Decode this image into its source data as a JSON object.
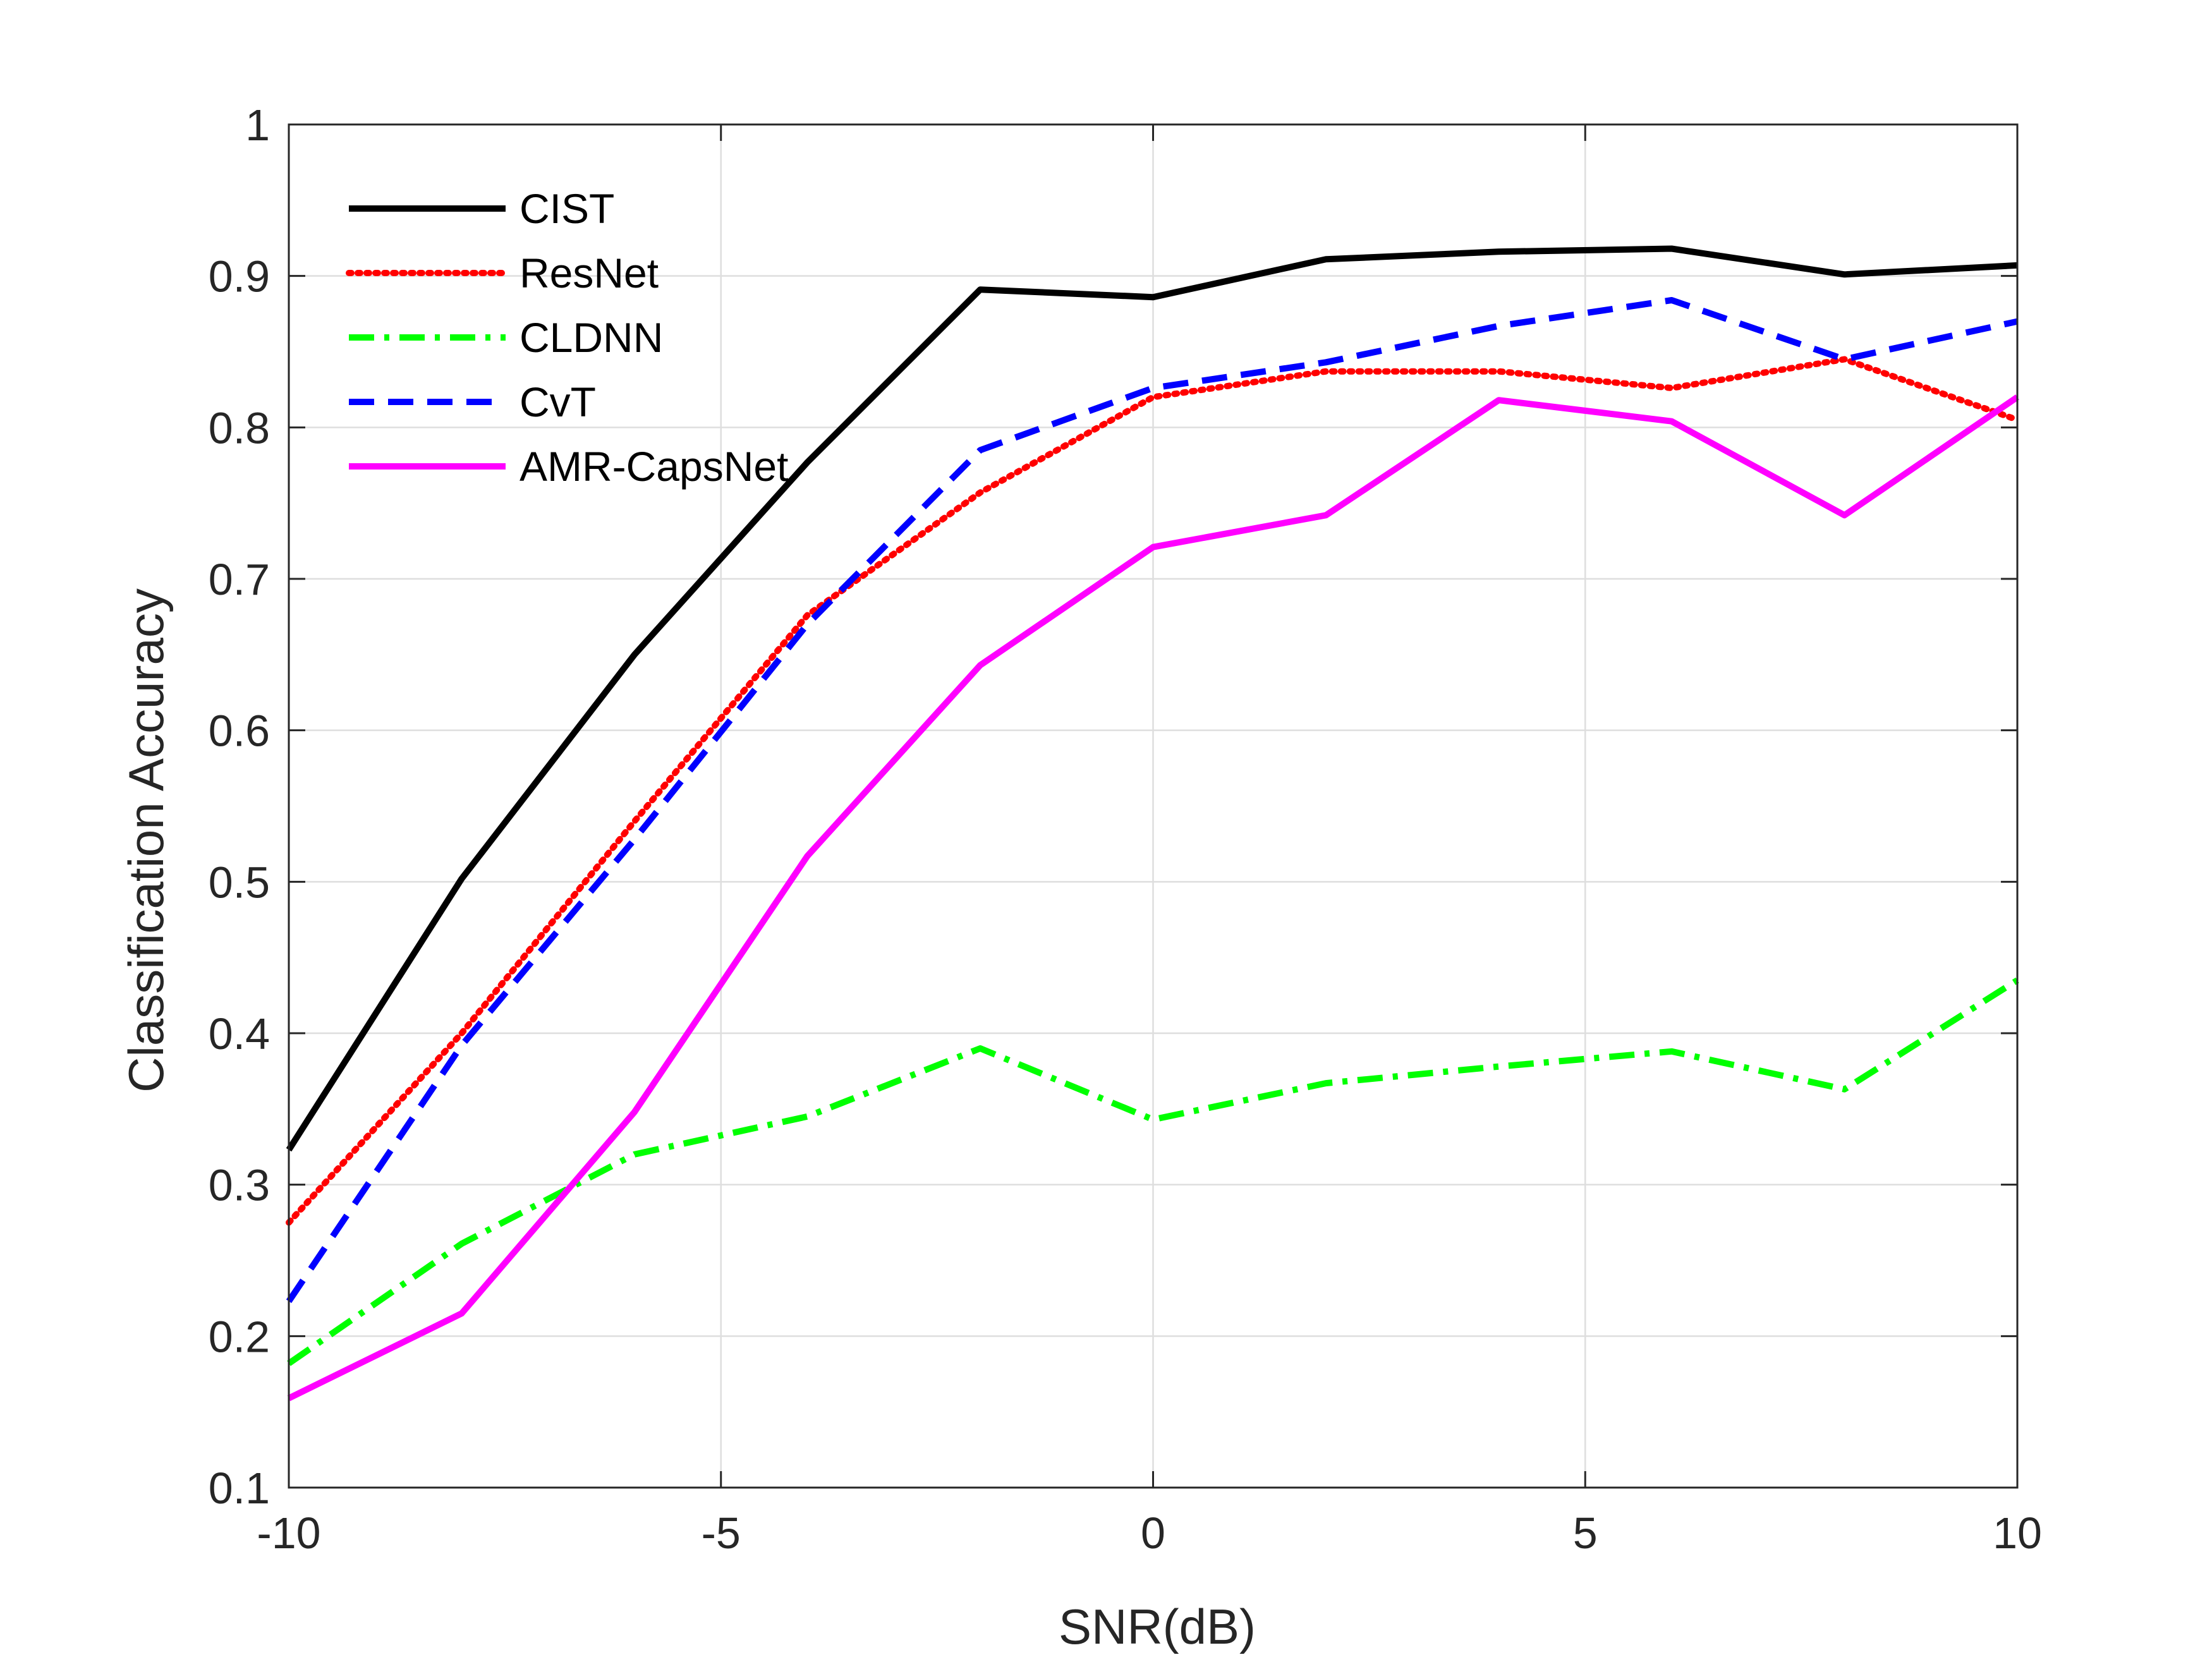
{
  "chart_data": {
    "type": "line",
    "title": "",
    "xlabel": "SNR(dB)",
    "ylabel": "Classification Accuracy",
    "xlim": [
      -10,
      10
    ],
    "ylim": [
      0.1,
      1
    ],
    "xticks": [
      -10,
      -5,
      0,
      5,
      10
    ],
    "xtick_labels": [
      "-10",
      "-5",
      "0",
      "5",
      "10"
    ],
    "yticks": [
      0.1,
      0.2,
      0.3,
      0.4,
      0.5,
      0.6,
      0.7,
      0.8,
      0.9,
      1
    ],
    "ytick_labels": [
      "0.1",
      "0.2",
      "0.3",
      "0.4",
      "0.5",
      "0.6",
      "0.7",
      "0.8",
      "0.9",
      "1"
    ],
    "grid": true,
    "legend_position": "top-left",
    "x": [
      -10,
      -8,
      -6,
      -4,
      -2,
      0,
      2,
      4,
      6,
      8,
      10
    ],
    "series": [
      {
        "name": "CIST",
        "color": "#000000",
        "dash": "solid",
        "values": [
          0.323,
          0.502,
          0.65,
          0.777,
          0.891,
          0.886,
          0.911,
          0.916,
          0.918,
          0.901,
          0.907
        ]
      },
      {
        "name": "ResNet",
        "color": "#ff0000",
        "dash": "dotted",
        "values": [
          0.275,
          0.4,
          0.54,
          0.676,
          0.757,
          0.82,
          0.837,
          0.837,
          0.826,
          0.845,
          0.805
        ]
      },
      {
        "name": "CLDNN",
        "color": "#00ff00",
        "dash": "dashdot",
        "values": [
          0.182,
          0.261,
          0.32,
          0.345,
          0.39,
          0.343,
          0.367,
          0.378,
          0.388,
          0.363,
          0.435
        ]
      },
      {
        "name": "CvT",
        "color": "#0000ff",
        "dash": "dashed",
        "values": [
          0.223,
          0.392,
          0.528,
          0.67,
          0.785,
          0.826,
          0.843,
          0.867,
          0.884,
          0.845,
          0.87
        ]
      },
      {
        "name": "AMR-CapsNet",
        "color": "#ff00ff",
        "dash": "solid",
        "values": [
          0.159,
          0.215,
          0.348,
          0.517,
          0.643,
          0.721,
          0.742,
          0.818,
          0.804,
          0.742,
          0.82
        ]
      }
    ]
  }
}
